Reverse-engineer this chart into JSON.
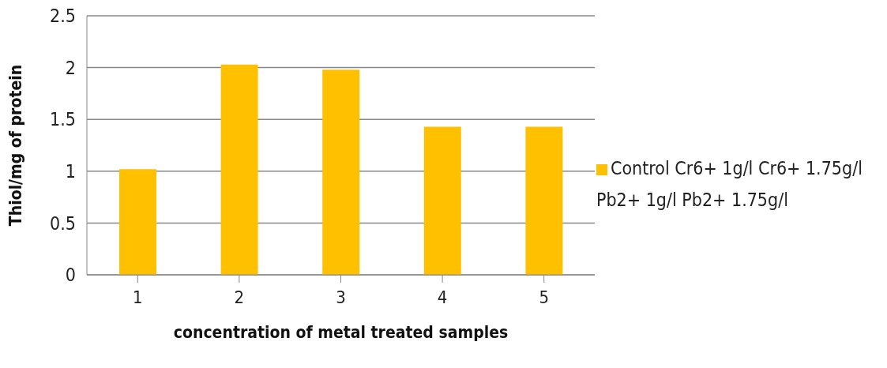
{
  "chart_data": {
    "type": "bar",
    "categories": [
      "1",
      "2",
      "3",
      "4",
      "5"
    ],
    "series": [
      {
        "name": "Control Cr6+ 1g/l Cr6+ 1.75g/l Pb2+ 1g/l Pb2+ 1.75g/l",
        "color": "#ffc000",
        "values": [
          1.02,
          2.03,
          1.98,
          1.43,
          1.43
        ]
      }
    ],
    "xlabel": "concentration of metal treated samples",
    "ylabel": "Thiol/mg of protein",
    "ylim": [
      0,
      2.5
    ],
    "yticks": [
      0,
      0.5,
      1,
      1.5,
      2,
      2.5
    ],
    "grid": "y",
    "legend": "right"
  }
}
